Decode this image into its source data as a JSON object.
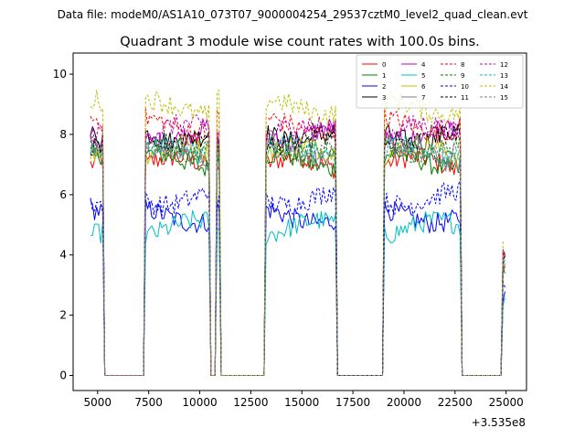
{
  "suptitle": "Data file: modeM0/AS1A10_073T07_9000004254_29537cztM0_level2_quad_clean.evt",
  "chart_data": {
    "type": "line",
    "title": "Quadrant 3 module wise count rates with 100.0s bins.",
    "xlabel": "",
    "ylabel": "",
    "offset_text": "+3.535e8",
    "xlim": [
      3800,
      26000
    ],
    "ylim": [
      -0.5,
      10.7
    ],
    "x_ticks": [
      5000,
      7500,
      10000,
      12500,
      15000,
      17500,
      20000,
      22500,
      25000
    ],
    "x_tick_labels": [
      "5000",
      "7500",
      "10000",
      "12500",
      "15000",
      "17500",
      "20000",
      "22500",
      "25000"
    ],
    "y_ticks": [
      0,
      2,
      4,
      6,
      8,
      10
    ],
    "y_tick_labels": [
      "0",
      "2",
      "4",
      "6",
      "8",
      "10"
    ],
    "legend_position": "upper right",
    "legend_columns": 4,
    "bin_width_s": 100,
    "segments": [
      {
        "start": 4650,
        "end": 5250
      },
      {
        "start": 7350,
        "end": 10500
      },
      {
        "start": 10850,
        "end": 10950
      },
      {
        "start": 13250,
        "end": 16650
      },
      {
        "start": 19050,
        "end": 22750
      },
      {
        "start": 24850,
        "end": 24950
      }
    ],
    "gaps": [
      {
        "start": 5350,
        "end": 7250
      },
      {
        "start": 10650,
        "end": 10750
      },
      {
        "start": 11050,
        "end": 13150
      },
      {
        "start": 16750,
        "end": 18950
      },
      {
        "start": 22850,
        "end": 24750
      }
    ],
    "series": [
      {
        "name": "0",
        "color": "#ff0000",
        "dash": false,
        "level": 7.0
      },
      {
        "name": "1",
        "color": "#008000",
        "dash": false,
        "level": 7.1
      },
      {
        "name": "2",
        "color": "#0000ff",
        "dash": false,
        "level": 5.3
      },
      {
        "name": "3",
        "color": "#000000",
        "dash": false,
        "level": 8.0
      },
      {
        "name": "4",
        "color": "#bf00bf",
        "dash": false,
        "level": 8.0
      },
      {
        "name": "5",
        "color": "#00bfbf",
        "dash": false,
        "level": 4.9
      },
      {
        "name": "6",
        "color": "#bfbf00",
        "dash": false,
        "level": 7.4
      },
      {
        "name": "7",
        "color": "#808080",
        "dash": false,
        "level": 7.3
      },
      {
        "name": "8",
        "color": "#ff0000",
        "dash": true,
        "level": 8.3
      },
      {
        "name": "9",
        "color": "#008000",
        "dash": true,
        "level": 7.6
      },
      {
        "name": "10",
        "color": "#0000ff",
        "dash": true,
        "level": 5.9
      },
      {
        "name": "11",
        "color": "#000000",
        "dash": true,
        "level": 7.8
      },
      {
        "name": "12",
        "color": "#bf00bf",
        "dash": true,
        "level": 8.1
      },
      {
        "name": "13",
        "color": "#00bfbf",
        "dash": true,
        "level": 7.4
      },
      {
        "name": "14",
        "color": "#bfbf00",
        "dash": true,
        "level": 8.9
      },
      {
        "name": "15",
        "color": "#808080",
        "dash": true,
        "level": 7.6
      }
    ]
  }
}
